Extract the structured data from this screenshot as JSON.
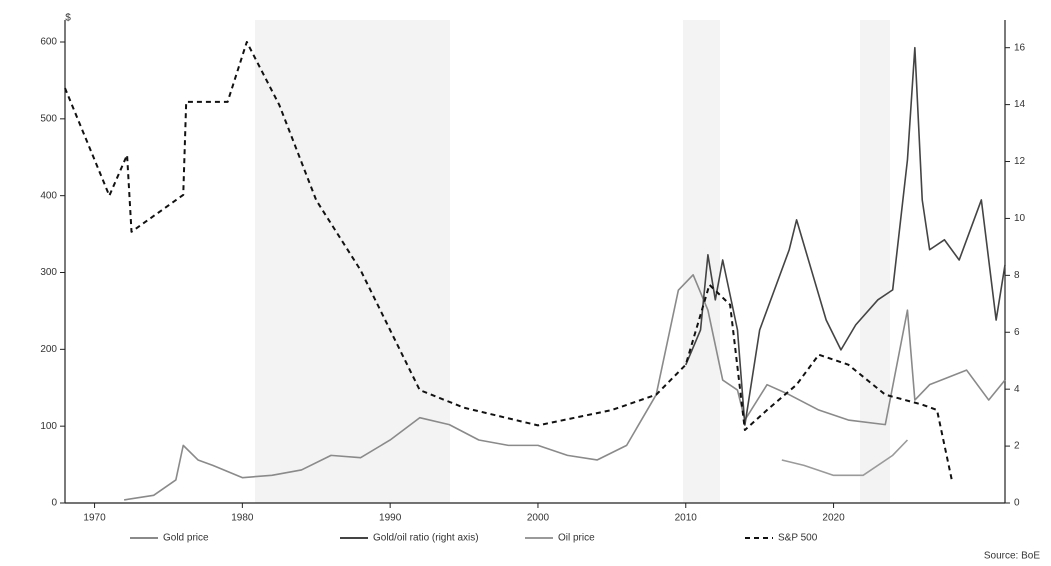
{
  "chart_data": {
    "type": "line",
    "y_unit": "$",
    "source": "Source: BoE",
    "xlim": [
      1968,
      2031.6
    ],
    "xticks": [
      1970,
      1980,
      1990,
      2000,
      2010,
      2020
    ],
    "ylim": [
      0,
      600
    ],
    "yticks": [
      0,
      100,
      200,
      300,
      400,
      500,
      600
    ],
    "y2lim": [
      0,
      16.2
    ],
    "y2ticks": [
      0,
      2,
      4,
      6,
      8,
      10,
      12,
      14,
      16
    ],
    "series": [
      {
        "name": "Gold price",
        "color": "#8a8a8a",
        "dash": false,
        "x": [
          1972,
          1974,
          1975.5,
          1976,
          1977,
          1978,
          1980,
          1982,
          1984,
          1986,
          1988,
          1990,
          1992,
          1994,
          1996,
          1998,
          2000,
          2002,
          2004,
          2006,
          2008,
          2009.5,
          2010.5,
          2011.5,
          2012.5,
          2013.5,
          2014,
          2015.5,
          2017,
          2019,
          2021,
          2023.5,
          2025,
          2025.5,
          2026.5,
          2029,
          2030.5,
          2031.6
        ],
        "values": [
          4,
          10,
          30,
          75,
          56,
          49,
          33,
          36,
          43,
          62,
          59,
          82,
          111,
          102,
          82,
          75,
          75,
          62,
          56,
          75,
          141,
          277,
          297,
          251,
          160,
          147,
          108,
          154,
          141,
          121,
          108,
          102,
          251,
          134,
          154,
          173,
          134,
          160
        ]
      },
      {
        "name": "Gold/oil ratio (right axis)",
        "color": "#444444",
        "dash": false,
        "axis": "y2",
        "x": [
          2010,
          2011,
          2011.5,
          2012,
          2012.5,
          2013.5,
          2014,
          2015,
          2016,
          2017,
          2017.5,
          2018.5,
          2019.5,
          2020.5,
          2021.5,
          2023,
          2024,
          2025,
          2025.5,
          2026,
          2026.5,
          2027.5,
          2028.5,
          2030,
          2031,
          2031.6
        ],
        "values": [
          4.85,
          6.08,
          8.72,
          7.14,
          8.54,
          6.08,
          2.74,
          6.08,
          7.49,
          8.9,
          9.95,
          8.19,
          6.43,
          5.38,
          6.26,
          7.14,
          7.49,
          12.06,
          16.0,
          10.65,
          8.9,
          9.25,
          8.54,
          10.65,
          6.43,
          8.37
        ]
      },
      {
        "name": "Oil price",
        "color": "#9a9a9a",
        "dash": false,
        "x": [
          2016.5,
          2018,
          2020,
          2022,
          2024,
          2025
        ],
        "values": [
          56,
          49,
          36,
          36,
          62,
          82
        ]
      },
      {
        "name": "S&P 500",
        "color": "#111111",
        "dash": true,
        "x": [
          1968,
          1971,
          1972.2,
          1972.5,
          1976,
          1976.2,
          1979,
          1980.3,
          1982.5,
          1985,
          1988,
          1990,
          1992,
          1995,
          2000,
          2005,
          2008,
          2010,
          2011.6,
          2013,
          2014,
          2015.5,
          2017.5,
          2019,
          2021,
          2023.5,
          2026,
          2027,
          2028
        ],
        "values": [
          540,
          400,
          453,
          353,
          401,
          522,
          522,
          600,
          518,
          394,
          303,
          225,
          147,
          124,
          101,
          121,
          141,
          180,
          284,
          258,
          95,
          121,
          154,
          193,
          180,
          141,
          128,
          121,
          30
        ]
      }
    ]
  }
}
